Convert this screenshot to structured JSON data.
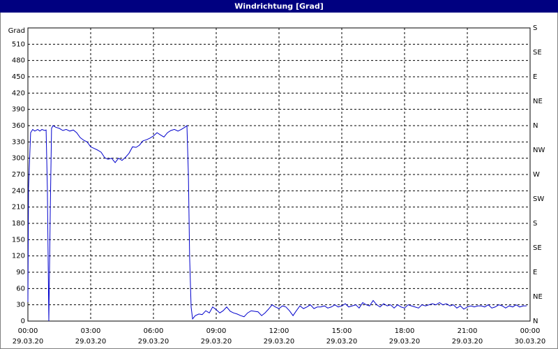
{
  "chart_data": {
    "type": "line",
    "title": "Windrichtung [Grad]",
    "y_label": "Grad",
    "x": [
      0,
      0.03,
      0.13,
      0.23,
      0.33,
      0.47,
      0.57,
      0.67,
      0.8,
      0.87,
      0.93,
      1.0,
      1.07,
      1.13,
      1.2,
      1.33,
      1.5,
      1.67,
      1.83,
      2.0,
      2.17,
      2.33,
      2.5,
      2.67,
      2.83,
      3.0,
      3.17,
      3.33,
      3.5,
      3.67,
      3.83,
      4.0,
      4.17,
      4.33,
      4.5,
      4.67,
      4.83,
      5.0,
      5.17,
      5.33,
      5.5,
      5.67,
      5.83,
      6.0,
      6.17,
      6.33,
      6.5,
      6.67,
      6.83,
      7.0,
      7.17,
      7.33,
      7.5,
      7.6,
      7.67,
      7.73,
      7.8,
      7.87,
      8.0,
      8.17,
      8.33,
      8.5,
      8.67,
      8.83,
      9.0,
      9.17,
      9.33,
      9.5,
      9.67,
      9.83,
      10.0,
      10.17,
      10.33,
      10.5,
      10.67,
      10.83,
      11.0,
      11.17,
      11.33,
      11.5,
      11.67,
      11.83,
      12.0,
      12.17,
      12.33,
      12.5,
      12.67,
      12.83,
      13.0,
      13.17,
      13.33,
      13.5,
      13.67,
      13.83,
      14.0,
      14.17,
      14.33,
      14.5,
      14.67,
      14.83,
      15.0,
      15.17,
      15.33,
      15.5,
      15.67,
      15.83,
      16.0,
      16.17,
      16.33,
      16.5,
      16.67,
      16.83,
      17.0,
      17.17,
      17.33,
      17.5,
      17.67,
      17.83,
      18.0,
      18.17,
      18.33,
      18.5,
      18.67,
      18.83,
      19.0,
      19.17,
      19.33,
      19.5,
      19.67,
      19.83,
      20.0,
      20.17,
      20.33,
      20.5,
      20.67,
      20.83,
      21.0,
      21.17,
      21.33,
      21.5,
      21.67,
      21.83,
      22.0,
      22.17,
      22.33,
      22.5,
      22.67,
      22.83,
      23.0,
      23.17,
      23.33,
      23.5,
      23.67,
      23.83
    ],
    "series": [
      {
        "color": "#0000cc",
        "values": [
          35,
          245,
          347,
          353,
          350,
          353,
          350,
          353,
          351,
          352,
          245,
          0,
          205,
          355,
          360,
          357,
          355,
          351,
          353,
          350,
          352,
          347,
          338,
          333,
          330,
          321,
          318,
          315,
          311,
          301,
          298,
          300,
          292,
          300,
          296,
          302,
          309,
          321,
          320,
          324,
          332,
          334,
          337,
          341,
          347,
          343,
          339,
          347,
          351,
          353,
          350,
          353,
          357,
          360,
          270,
          116,
          26,
          4,
          10,
          13,
          12,
          19,
          15,
          26,
          21,
          15,
          19,
          26,
          18,
          15,
          13,
          10,
          8,
          15,
          19,
          18,
          17,
          10,
          15,
          22,
          30,
          26,
          23,
          28,
          26,
          19,
          10,
          19,
          28,
          23,
          26,
          30,
          23,
          26,
          26,
          28,
          24,
          26,
          30,
          26,
          28,
          32,
          26,
          28,
          30,
          24,
          34,
          30,
          28,
          38,
          30,
          26,
          32,
          28,
          30,
          24,
          30,
          26,
          24,
          30,
          28,
          26,
          24,
          30,
          28,
          30,
          32,
          30,
          34,
          30,
          32,
          28,
          30,
          24,
          28,
          22,
          26,
          28,
          26,
          28,
          28,
          26,
          30,
          24,
          26,
          30,
          28,
          24,
          28,
          26,
          30,
          26,
          28,
          28
        ]
      }
    ],
    "xlim": [
      0,
      24
    ],
    "xticks": [
      {
        "value": 0,
        "label": "00:00",
        "date": "29.03.20"
      },
      {
        "value": 3,
        "label": "03:00",
        "date": "29.03.20"
      },
      {
        "value": 6,
        "label": "06:00",
        "date": "29.03.20"
      },
      {
        "value": 9,
        "label": "09:00",
        "date": "29.03.20"
      },
      {
        "value": 12,
        "label": "12:00",
        "date": "29.03.20"
      },
      {
        "value": 15,
        "label": "15:00",
        "date": "29.03.20"
      },
      {
        "value": 18,
        "label": "18:00",
        "date": "29.03.20"
      },
      {
        "value": 21,
        "label": "21:00",
        "date": "29.03.20"
      },
      {
        "value": 24,
        "label": "00:00",
        "date": "30.03.20"
      }
    ],
    "ylim": [
      0,
      540
    ],
    "yticks": [
      0,
      30,
      60,
      90,
      120,
      150,
      180,
      210,
      240,
      270,
      300,
      330,
      360,
      390,
      420,
      450,
      480,
      510
    ],
    "y2lim": [
      0,
      540
    ],
    "y2ticks": [
      {
        "value": 0,
        "label": "N"
      },
      {
        "value": 45,
        "label": "NE"
      },
      {
        "value": 90,
        "label": "E"
      },
      {
        "value": 135,
        "label": "SE"
      },
      {
        "value": 180,
        "label": "S"
      },
      {
        "value": 225,
        "label": "SW"
      },
      {
        "value": 270,
        "label": "W"
      },
      {
        "value": 315,
        "label": "NW"
      },
      {
        "value": 360,
        "label": "N"
      },
      {
        "value": 405,
        "label": "NE"
      },
      {
        "value": 450,
        "label": "E"
      },
      {
        "value": 495,
        "label": "SE"
      },
      {
        "value": 540,
        "label": "S"
      }
    ],
    "grid": true
  }
}
